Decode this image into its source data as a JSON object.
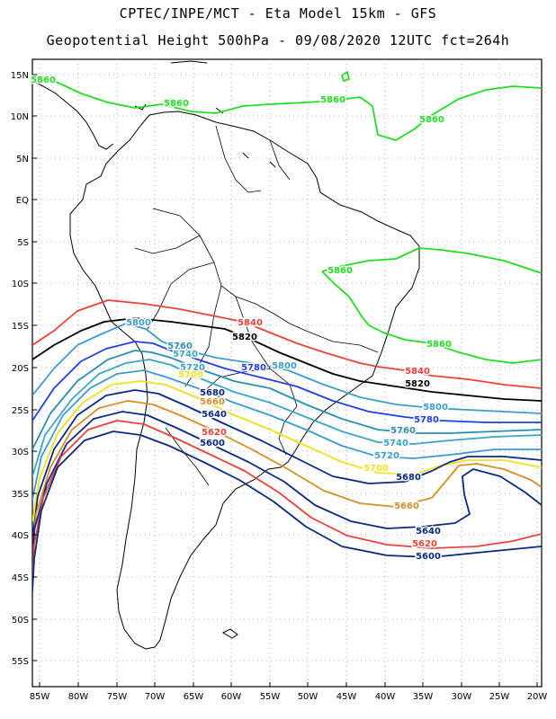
{
  "header": {
    "line1": "CPTEC/INPE/MCT -  Eta Model 15km - GFS",
    "line2": "Geopotential Height 500hPa - 09/08/2020 12UTC fct=264h"
  },
  "axes": {
    "lat_labels": [
      "15N",
      "10N",
      "5N",
      "EQ",
      "5S",
      "10S",
      "15S",
      "20S",
      "25S",
      "30S",
      "35S",
      "40S",
      "45S",
      "50S",
      "55S"
    ],
    "lon_labels": [
      "85W",
      "80W",
      "75W",
      "70W",
      "65W",
      "60W",
      "55W",
      "50W",
      "45W",
      "40W",
      "35W",
      "30W",
      "25W",
      "20W"
    ],
    "grid": "dotted"
  },
  "contours": [
    {
      "value": "5860",
      "color": "#22dd22"
    },
    {
      "value": "5840",
      "color": "#e8433a"
    },
    {
      "value": "5820",
      "color": "#000000"
    },
    {
      "value": "5800",
      "color": "#3b9ec8"
    },
    {
      "value": "5780",
      "color": "#1f3fe0"
    },
    {
      "value": "5760",
      "color": "#2a8fb0"
    },
    {
      "value": "5740",
      "color": "#3aa5c4"
    },
    {
      "value": "5720",
      "color": "#3c9bd0"
    },
    {
      "value": "5700",
      "color": "#f0e020"
    },
    {
      "value": "5680",
      "color": "#0a2a80"
    },
    {
      "value": "5660",
      "color": "#d49028"
    },
    {
      "value": "5640",
      "color": "#0a2a80"
    },
    {
      "value": "5620",
      "color": "#e8433a"
    },
    {
      "value": "5600",
      "color": "#0a2a80"
    }
  ]
}
